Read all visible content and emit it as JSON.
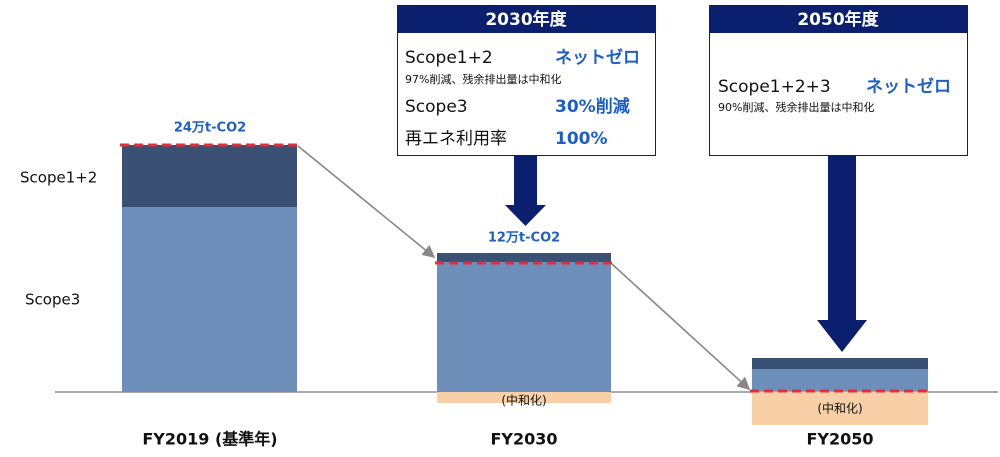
{
  "callouts": [
    {
      "title": "2030年度",
      "rows": [
        {
          "label": "Scope1+2",
          "value": "ネットゼロ",
          "note": "97%削減、残余排出量は中和化"
        },
        {
          "label": "Scope3",
          "value": "30%削減"
        },
        {
          "label": "再エネ利用率",
          "value": "100%"
        }
      ]
    },
    {
      "title": "2050年度",
      "rows": [
        {
          "label": "Scope1+2+3",
          "value": "ネットゼロ",
          "note": "90%削減、残余排出量は中和化"
        }
      ]
    }
  ],
  "legend": [
    "Scope1+2",
    "Scope3"
  ],
  "bars": [
    {
      "label": "FY2019 (基準年)",
      "total": "24万t-CO2"
    },
    {
      "label": "FY2030",
      "total": "12万t-CO2",
      "offset": "(中和化)"
    },
    {
      "label": "FY2050",
      "offset": "(中和化)"
    }
  ]
}
